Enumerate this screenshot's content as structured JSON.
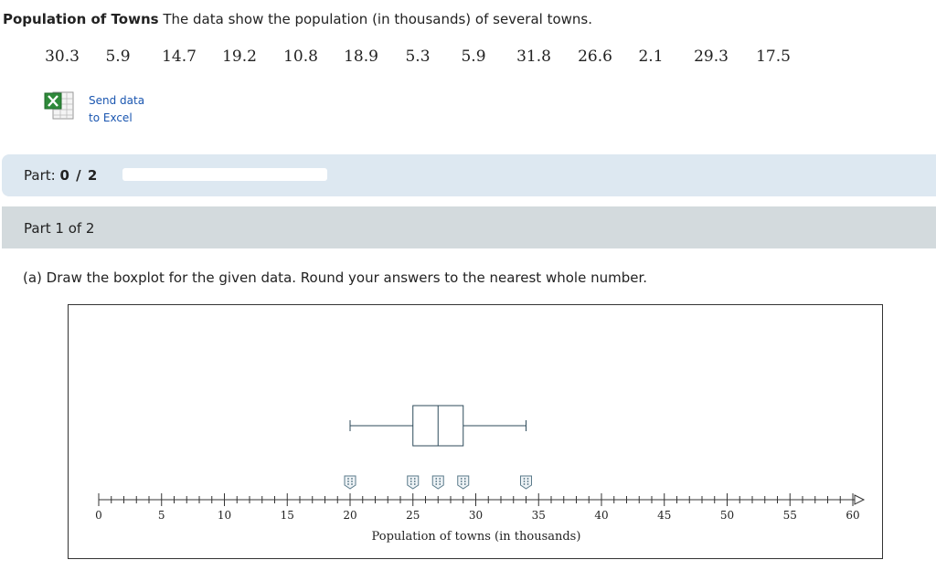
{
  "problem": {
    "title": "Population of Towns",
    "description": "The data show the population (in thousands) of several towns.",
    "values": [
      "30.3",
      "5.9",
      "14.7",
      "19.2",
      "10.8",
      "18.9",
      "5.3",
      "5.9",
      "31.8",
      "26.6",
      "2.1",
      "29.3",
      "17.5"
    ]
  },
  "excel_link": {
    "line1": "Send data",
    "line2": "to Excel"
  },
  "part_progress": {
    "label": "Part:",
    "value": "0 / 2",
    "fraction": 0
  },
  "part_header": "Part 1 of 2",
  "question": "(a) Draw the boxplot for the given data. Round your answers to the nearest whole number.",
  "boxplot": {
    "axis_label": "Population of towns (in thousands)",
    "axis_min": 0,
    "axis_max": 60,
    "major_tick_step": 5,
    "minor_tick_step": 1,
    "tick_labels": [
      "0",
      "5",
      "10",
      "15",
      "20",
      "25",
      "30",
      "35",
      "40",
      "45",
      "50",
      "55",
      "60"
    ],
    "whisker_min": 20,
    "q1": 25,
    "median": 27,
    "q3": 29,
    "whisker_max": 34,
    "box_color": "#2d4a5a"
  }
}
